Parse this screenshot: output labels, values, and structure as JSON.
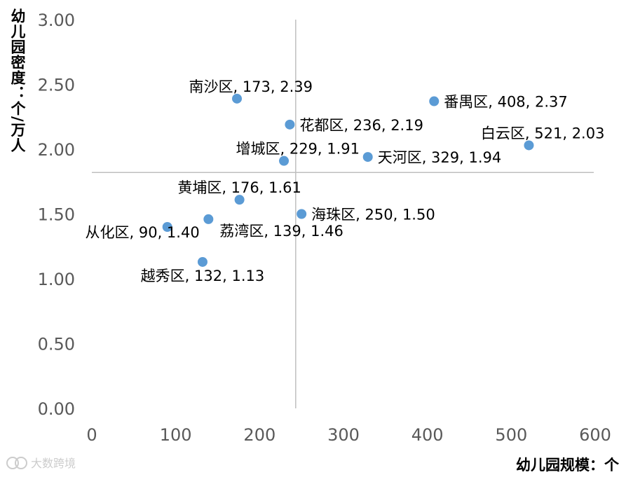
{
  "chart_data": {
    "type": "scatter",
    "xlabel": "幼儿园规模：个",
    "ylabel": "幼儿园密度：个/万人",
    "xlim": [
      0,
      600
    ],
    "ylim": [
      0,
      3
    ],
    "x_ticks": [
      "0",
      "100",
      "200",
      "300",
      "400",
      "500",
      "600"
    ],
    "y_ticks": [
      "0.00",
      "0.50",
      "1.00",
      "1.50",
      "2.00",
      "2.50",
      "3.00"
    ],
    "reference_lines": {
      "x": 243,
      "y": 1.82
    },
    "grid": false,
    "marker_color": "#5b9bd5",
    "points": [
      {
        "name": "南沙区",
        "x": 173,
        "y": 2.39,
        "label": "南沙区, 173, 2.39",
        "label_pos": "above-left"
      },
      {
        "name": "番禺区",
        "x": 408,
        "y": 2.37,
        "label": "番禺区, 408, 2.37",
        "label_pos": "right"
      },
      {
        "name": "花都区",
        "x": 236,
        "y": 2.19,
        "label": "花都区, 236, 2.19",
        "label_pos": "right"
      },
      {
        "name": "白云区",
        "x": 521,
        "y": 2.03,
        "label": "白云区, 521, 2.03",
        "label_pos": "above-left"
      },
      {
        "name": "天河区",
        "x": 329,
        "y": 1.94,
        "label": "天河区, 329, 1.94",
        "label_pos": "right"
      },
      {
        "name": "增城区",
        "x": 229,
        "y": 1.91,
        "label": "增城区, 229, 1.91",
        "label_pos": "above-left"
      },
      {
        "name": "黄埔区",
        "x": 176,
        "y": 1.61,
        "label": "黄埔区, 176, 1.61",
        "label_pos": "above"
      },
      {
        "name": "海珠区",
        "x": 250,
        "y": 1.5,
        "label": "海珠区, 250, 1.50",
        "label_pos": "right"
      },
      {
        "name": "荔湾区",
        "x": 139,
        "y": 1.46,
        "label": "荔湾区, 139, 1.46",
        "label_pos": "below-right"
      },
      {
        "name": "从化区",
        "x": 90,
        "y": 1.4,
        "label": "从化区, 90, 1.40",
        "label_pos": "left-below"
      },
      {
        "name": "越秀区",
        "x": 132,
        "y": 1.13,
        "label": "越秀区, 132, 1.13",
        "label_pos": "below"
      }
    ]
  },
  "watermark": "大数跨境"
}
